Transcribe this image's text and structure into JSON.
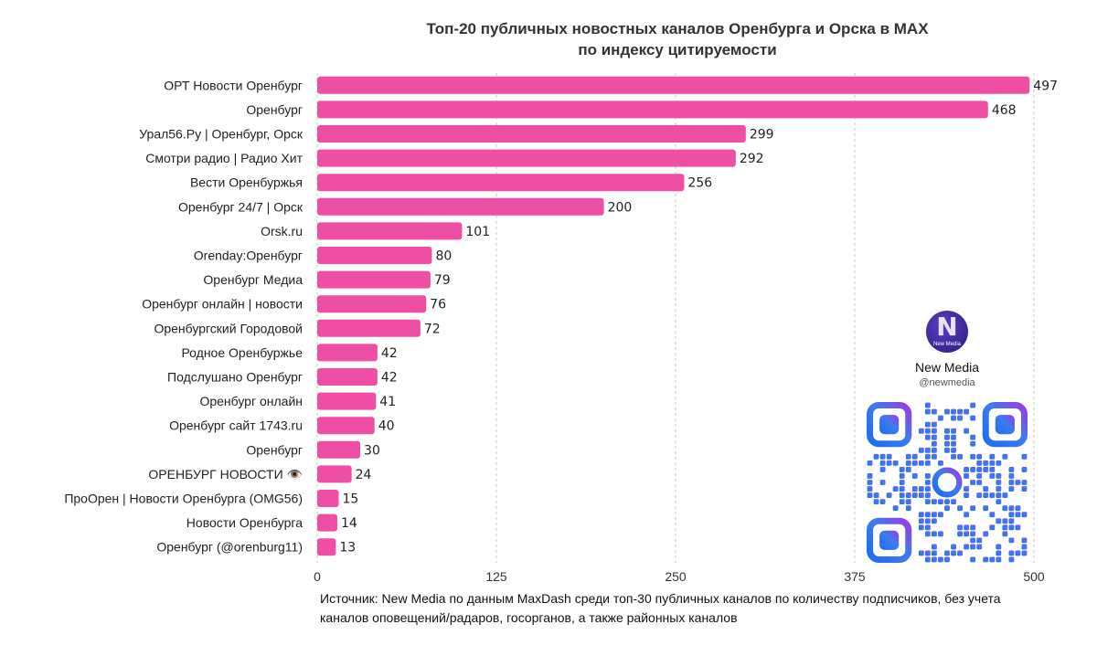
{
  "chart_data": {
    "type": "bar",
    "orientation": "horizontal",
    "title_lines": [
      "Топ-20 публичных новостных каналов Оренбурга и Орска в MAX",
      "по индексу цитируемости"
    ],
    "categories": [
      "ОРТ Новости Оренбург",
      "Оренбург",
      "Урал56.Ру | Оренбург, Орск",
      "Смотри радио | Радио Хит",
      "Вести Оренбуржья",
      "Оренбург 24/7 | Орск",
      "Orsk.ru",
      "Orenday:Оренбург",
      "Оренбург Медиа",
      "Оренбург онлайн | новости",
      "Оренбургский Городовой",
      "Родное Оренбуржье",
      "Подслушано Оренбург",
      "Оренбург онлайн",
      "Оренбург сайт 1743.ru",
      "Оренбург",
      "ОРЕНБУРГ НОВОСТИ 👁️",
      "ПроОрен | Новости Оренбурга (OMG56)",
      "Новости Оренбурга",
      "Оренбург (@orenburg11)"
    ],
    "values": [
      497,
      468,
      299,
      292,
      256,
      200,
      101,
      80,
      79,
      76,
      72,
      42,
      42,
      41,
      40,
      30,
      24,
      15,
      14,
      13
    ],
    "xlim": [
      0,
      500
    ],
    "x_ticks": [
      "0",
      "125",
      "250",
      "375",
      "500"
    ],
    "grid": true,
    "bar_color": "#ef4ea5"
  },
  "source_note": "Источник: New Media по данным MaxDash среди топ-30 публичных каналов по количеству подписчиков, без учета каналов оповещений/радаров, госорганов, а также районных каналов",
  "brand": {
    "logo_letter": "N",
    "logo_caption": "New Media",
    "name": "New Media",
    "handle": "@newmedia"
  }
}
